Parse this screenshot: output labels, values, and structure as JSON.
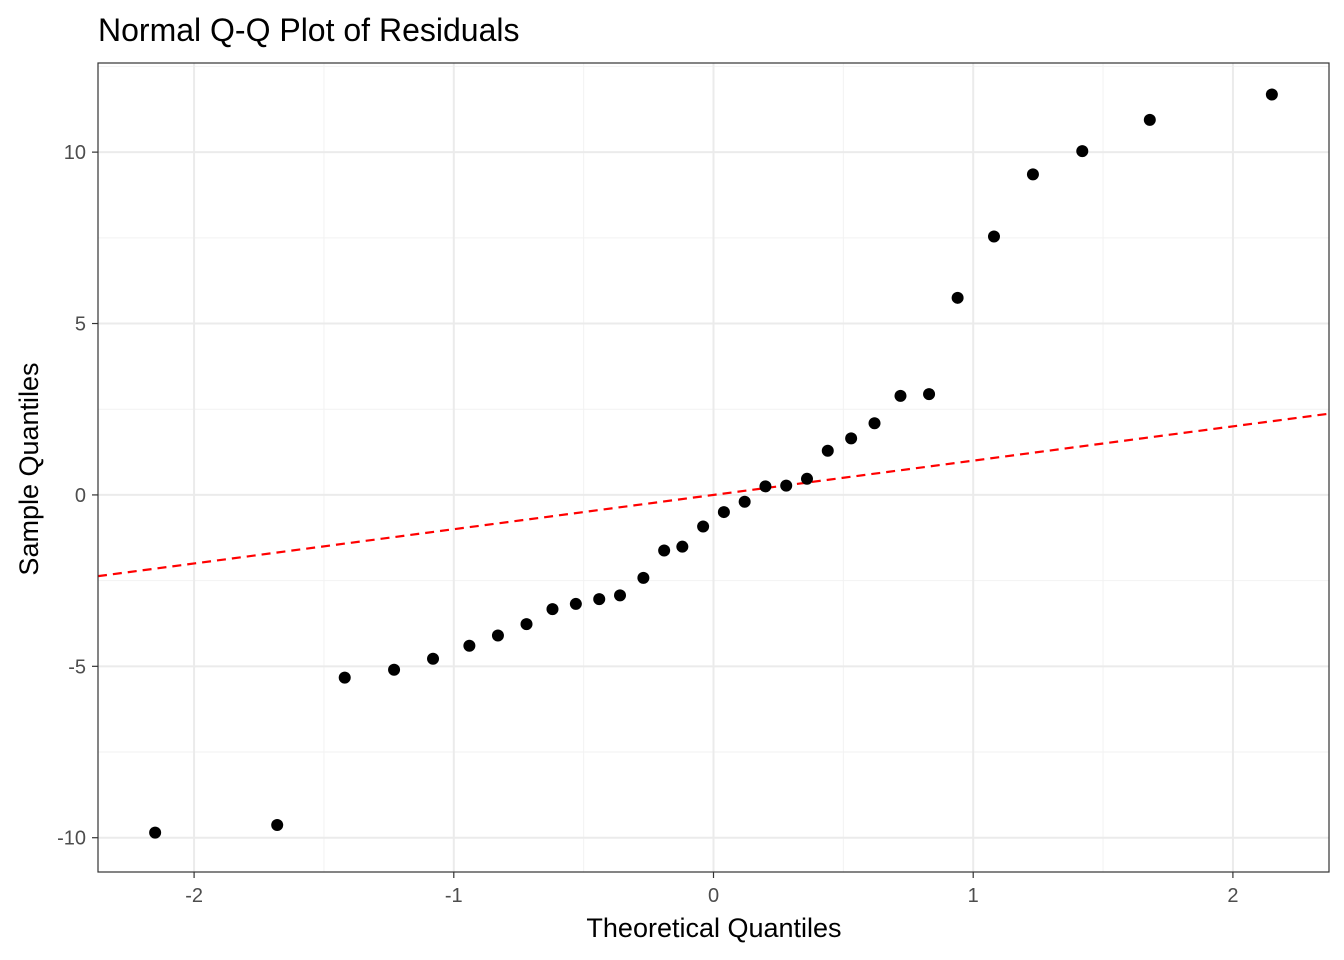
{
  "chart_data": {
    "type": "scatter",
    "title": "Normal Q-Q Plot of Residuals",
    "xlabel": "Theoretical Quantiles",
    "ylabel": "Sample Quantiles",
    "xlim": [
      -2.37,
      2.37
    ],
    "ylim": [
      -11.0,
      12.6
    ],
    "x_ticks": [
      -2,
      -1,
      0,
      1,
      2
    ],
    "x_tick_labels": [
      "-2",
      "-1",
      "0",
      "1",
      "2"
    ],
    "y_ticks": [
      -10,
      -5,
      0,
      5,
      10
    ],
    "y_tick_labels": [
      "-10",
      "-5",
      "0",
      "5",
      "10"
    ],
    "grid": true,
    "points": [
      {
        "x": -2.15,
        "y": -9.85
      },
      {
        "x": -1.68,
        "y": -9.63
      },
      {
        "x": -1.42,
        "y": -5.33
      },
      {
        "x": -1.23,
        "y": -5.1
      },
      {
        "x": -1.08,
        "y": -4.78
      },
      {
        "x": -0.94,
        "y": -4.4
      },
      {
        "x": -0.83,
        "y": -4.1
      },
      {
        "x": -0.72,
        "y": -3.77
      },
      {
        "x": -0.62,
        "y": -3.33
      },
      {
        "x": -0.53,
        "y": -3.18
      },
      {
        "x": -0.44,
        "y": -3.04
      },
      {
        "x": -0.36,
        "y": -2.93
      },
      {
        "x": -0.27,
        "y": -2.42
      },
      {
        "x": -0.19,
        "y": -1.62
      },
      {
        "x": -0.12,
        "y": -1.51
      },
      {
        "x": -0.04,
        "y": -0.92
      },
      {
        "x": 0.04,
        "y": -0.5
      },
      {
        "x": 0.12,
        "y": -0.2
      },
      {
        "x": 0.2,
        "y": 0.25
      },
      {
        "x": 0.28,
        "y": 0.27
      },
      {
        "x": 0.36,
        "y": 0.47
      },
      {
        "x": 0.44,
        "y": 1.29
      },
      {
        "x": 0.53,
        "y": 1.65
      },
      {
        "x": 0.62,
        "y": 2.09
      },
      {
        "x": 0.72,
        "y": 2.89
      },
      {
        "x": 0.83,
        "y": 2.94
      },
      {
        "x": 0.94,
        "y": 5.75
      },
      {
        "x": 1.08,
        "y": 7.54
      },
      {
        "x": 1.23,
        "y": 9.35
      },
      {
        "x": 1.42,
        "y": 10.03
      },
      {
        "x": 1.68,
        "y": 10.94
      },
      {
        "x": 2.15,
        "y": 11.68
      }
    ],
    "reference_line": {
      "intercept": 0,
      "slope": 1,
      "style": "dashed",
      "color": "#ff0000"
    },
    "point_color": "#000000"
  }
}
